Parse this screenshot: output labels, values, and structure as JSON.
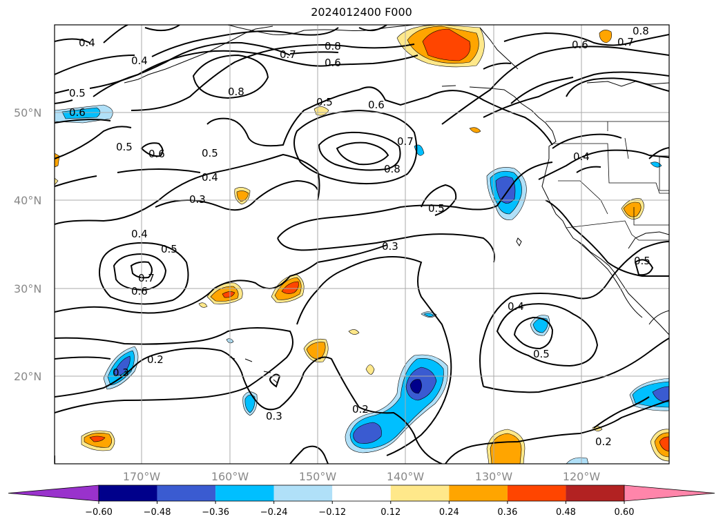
{
  "title": "2024012400 F000",
  "lat_labels": [
    "50°N",
    "40°N",
    "30°N",
    "20°N"
  ],
  "lon_labels": [
    "170°W",
    "160°W",
    "150°W",
    "140°W",
    "130°W",
    "120°W"
  ],
  "colorbar": {
    "ticks": [
      "−0.60",
      "−0.48",
      "−0.36",
      "−0.24",
      "−0.12",
      "0.12",
      "0.24",
      "0.36",
      "0.48",
      "0.60"
    ],
    "colors": [
      "#9932cc",
      "#00008b",
      "#3a5bd1",
      "#00bfff",
      "#b0e0f8",
      "#ffffff",
      "#ffe88a",
      "#ffa500",
      "#ff4500",
      "#b22222",
      "#ff85aa"
    ]
  },
  "contour_labels": [
    "0.4",
    "0.4",
    "0.5",
    "0.6",
    "0.7",
    "0.8",
    "0.8",
    "0.6",
    "0.5",
    "0.6",
    "0.5",
    "0.6",
    "0.5",
    "0.4",
    "0.3",
    "0.7",
    "0.8",
    "0.5",
    "0.3",
    "0.4",
    "0.5",
    "0.7",
    "0.6",
    "0.3",
    "0.2",
    "0.3",
    "0.2",
    "0.4",
    "0.5",
    "0.2",
    "0.4",
    "0.5",
    "0.6",
    "0.7",
    "0.8"
  ]
}
